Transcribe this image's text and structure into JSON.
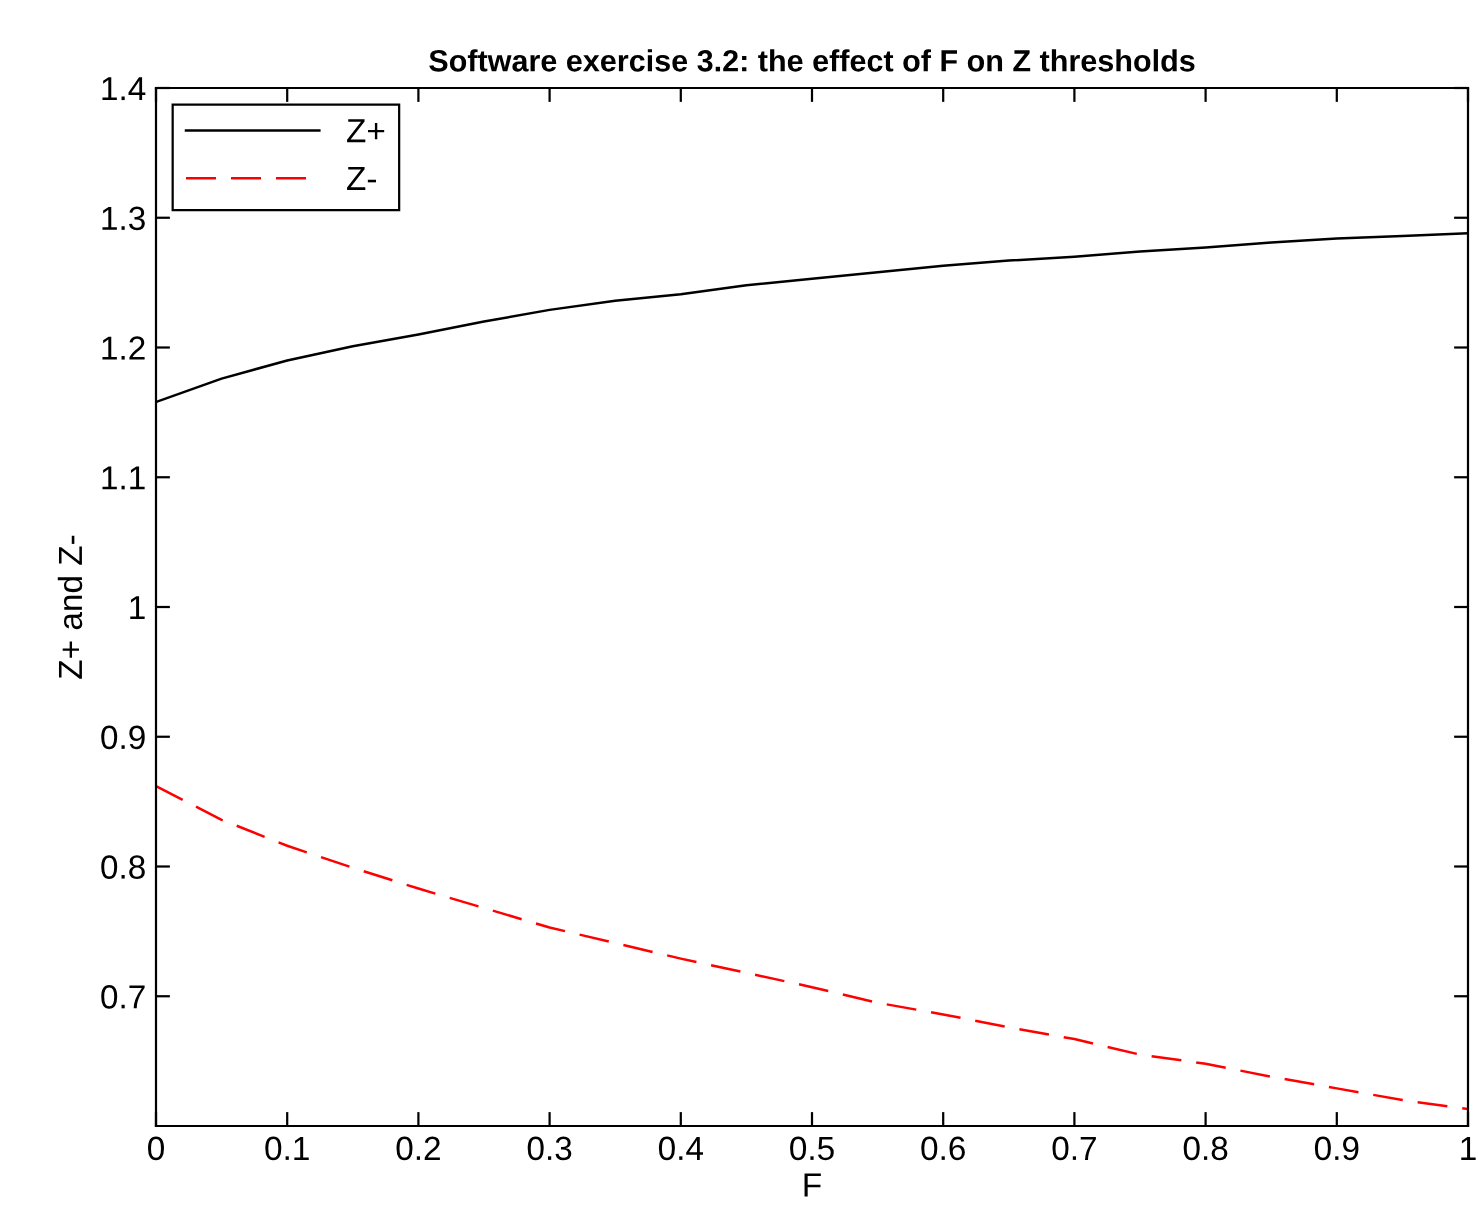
{
  "chart_data": {
    "type": "line",
    "title": "Software exercise 3.2: the effect of F on Z thresholds",
    "xlabel": "F",
    "ylabel": "Z+ and Z-",
    "x": [
      0,
      0.05,
      0.1,
      0.15,
      0.2,
      0.25,
      0.3,
      0.35,
      0.4,
      0.45,
      0.5,
      0.55,
      0.6,
      0.65,
      0.7,
      0.75,
      0.8,
      0.85,
      0.9,
      0.95,
      1
    ],
    "series": [
      {
        "name": "Z+",
        "color": "#000000",
        "line_style": "solid",
        "values": [
          1.158,
          1.176,
          1.19,
          1.201,
          1.21,
          1.22,
          1.229,
          1.236,
          1.241,
          1.248,
          1.253,
          1.258,
          1.263,
          1.267,
          1.27,
          1.274,
          1.277,
          1.281,
          1.284,
          1.286,
          1.288
        ]
      },
      {
        "name": "Z-",
        "color": "#ff0000",
        "line_style": "dashed",
        "values": [
          0.862,
          0.836,
          0.816,
          0.799,
          0.783,
          0.768,
          0.753,
          0.741,
          0.729,
          0.718,
          0.707,
          0.695,
          0.686,
          0.676,
          0.667,
          0.655,
          0.648,
          0.638,
          0.629,
          0.62,
          0.613
        ]
      }
    ],
    "xlim": [
      0,
      1
    ],
    "xticks": [
      0,
      0.1,
      0.2,
      0.3,
      0.4,
      0.5,
      0.6,
      0.7,
      0.8,
      0.9,
      1
    ],
    "ylim": [
      0.6,
      1.4
    ],
    "yticks": [
      0.7,
      0.8,
      0.9,
      1,
      1.1,
      1.2,
      1.3,
      1.4
    ],
    "grid": false,
    "legend": "top left"
  }
}
